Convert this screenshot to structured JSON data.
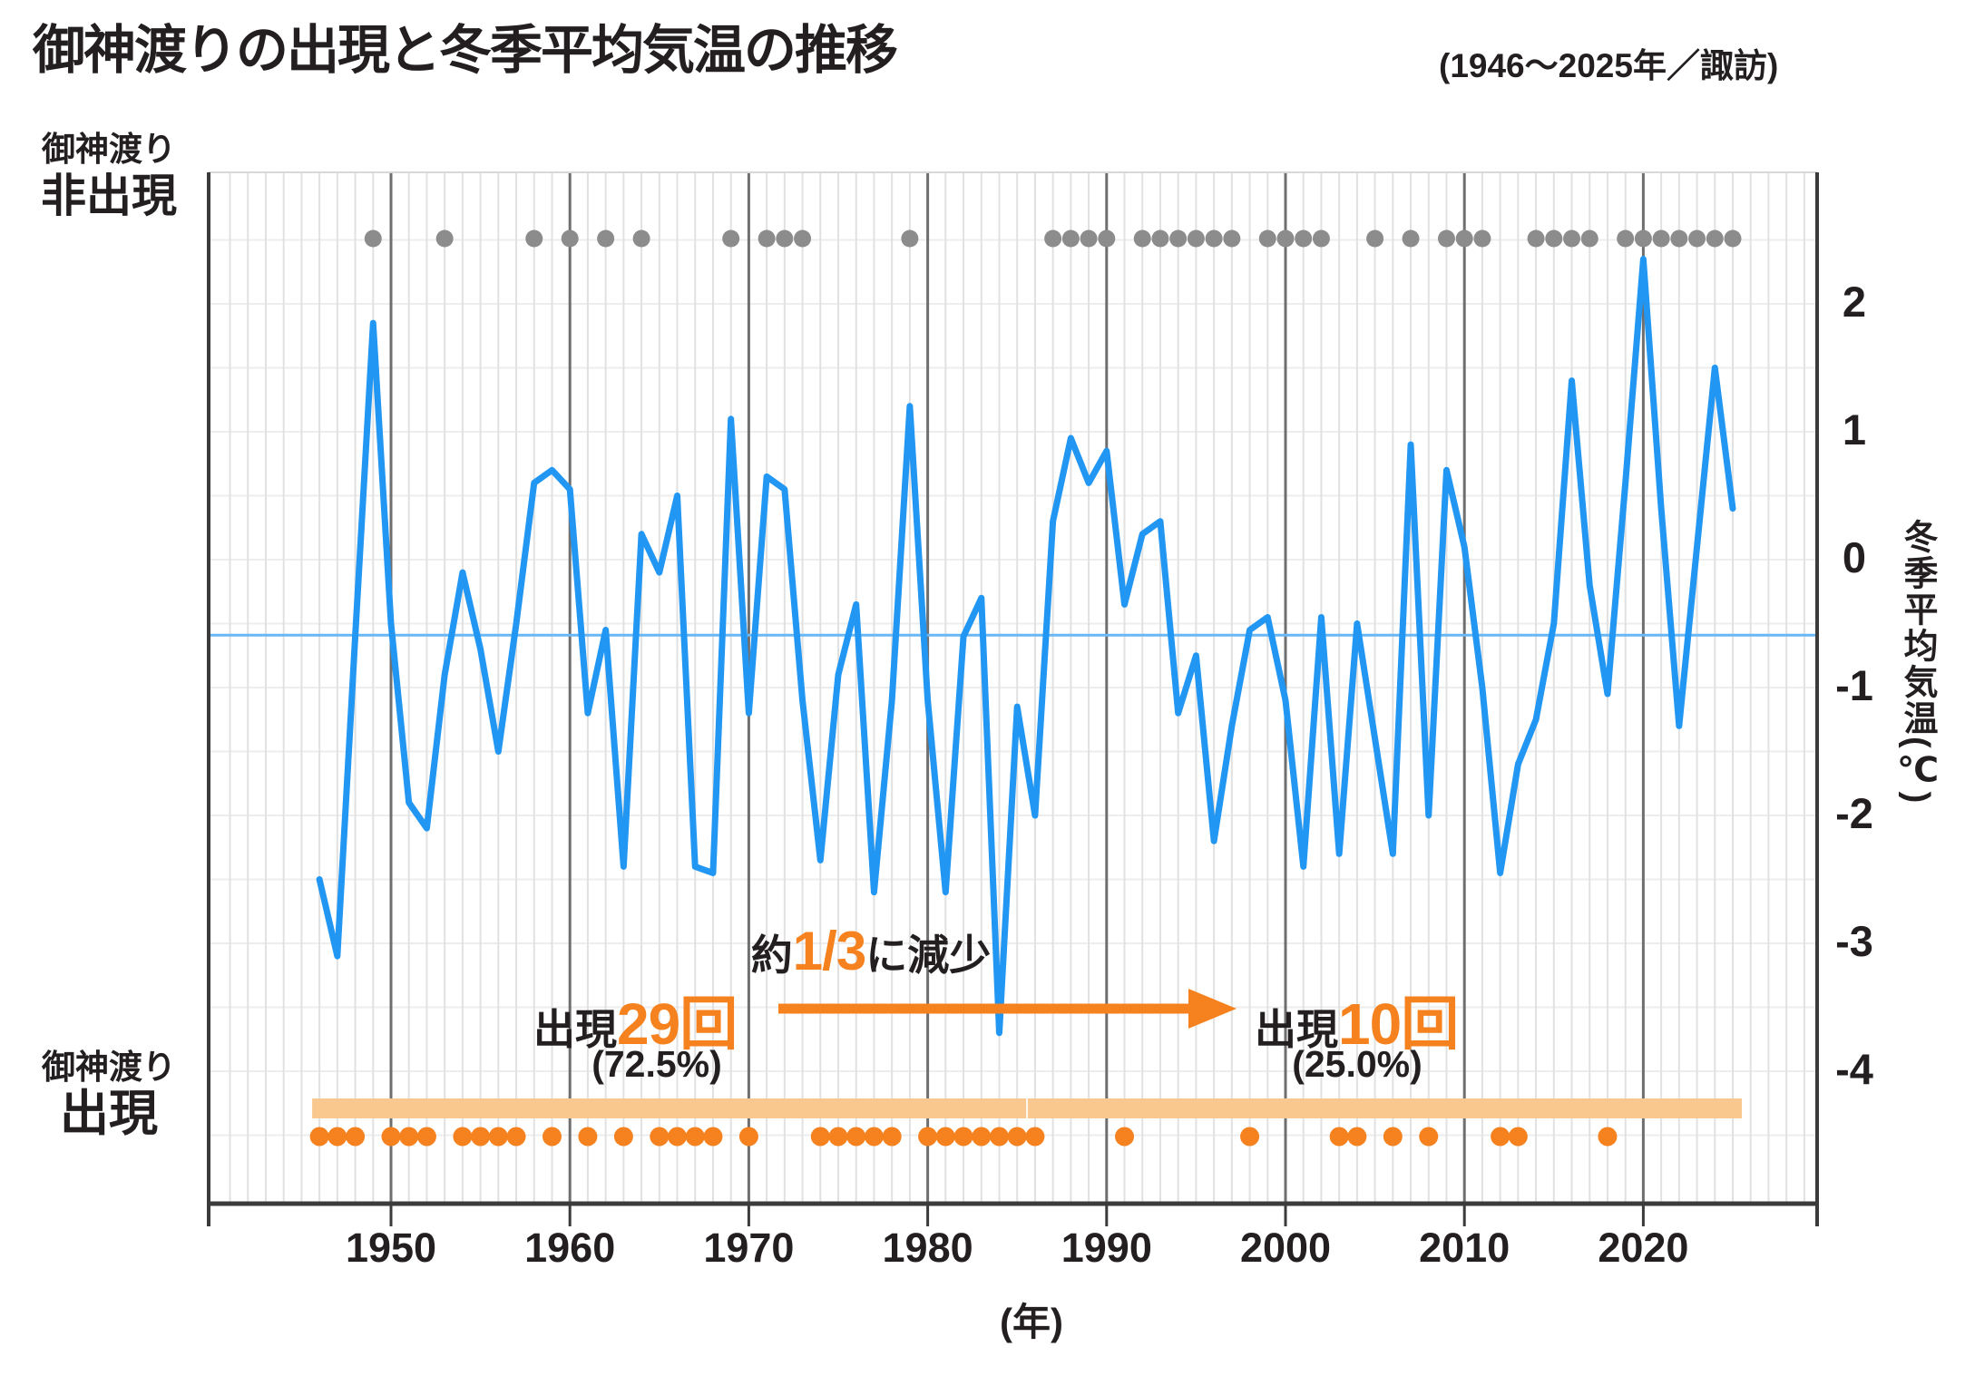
{
  "title": "御神渡りの出現と冬季平均気温の推移",
  "subtitle": "(1946〜2025年／諏訪)",
  "left_labels": {
    "non_appearance_line1": "御神渡り",
    "non_appearance_line2": "非出現",
    "appearance_line1": "御神渡り",
    "appearance_line2": "出現"
  },
  "y_axis": {
    "unit_label": "冬季平均気温(℃)",
    "ticks": [
      2,
      1,
      0,
      -1,
      -2,
      -3,
      -4
    ]
  },
  "x_axis": {
    "ticks": [
      1950,
      1960,
      1970,
      1980,
      1990,
      2000,
      2010,
      2020
    ],
    "unit_label": "(年)"
  },
  "annotations": {
    "left_prefix": "出現",
    "left_count": "29回",
    "left_pct": "(72.5%)",
    "right_prefix": "出現",
    "right_count": "10回",
    "right_pct": "(25.0%)",
    "reduce_pre": "約",
    "reduce_frac": "1/3",
    "reduce_post": "に減少"
  },
  "colors": {
    "temperature_line": "#2196f3",
    "baseline": "#6ab7f5",
    "orange": "#f5821f",
    "orange_bar": "#f8c88e",
    "gray_dot": "#8c8c8c",
    "decade_grid": "#6f6f6f",
    "year_grid": "#e1e1e1",
    "h_grid": "#ededed",
    "border": "#3b3b3b",
    "top_border": "#d8d8d8",
    "text": "#231f20"
  },
  "chart_data": {
    "type": "line",
    "title": "御神渡りの出現と冬季平均気温の推移(1946〜2025年／諏訪)",
    "xlabel": "年",
    "ylabel": "冬季平均気温(℃)",
    "xlim": [
      1940,
      2030
    ],
    "ylim": [
      -5,
      3
    ],
    "grid": true,
    "x": [
      1946,
      1947,
      1948,
      1949,
      1950,
      1951,
      1952,
      1953,
      1954,
      1955,
      1956,
      1957,
      1958,
      1959,
      1960,
      1961,
      1962,
      1963,
      1964,
      1965,
      1966,
      1967,
      1968,
      1969,
      1970,
      1971,
      1972,
      1973,
      1974,
      1975,
      1976,
      1977,
      1978,
      1979,
      1980,
      1981,
      1982,
      1983,
      1984,
      1985,
      1986,
      1987,
      1988,
      1989,
      1990,
      1991,
      1992,
      1993,
      1994,
      1995,
      1996,
      1997,
      1998,
      1999,
      2000,
      2001,
      2002,
      2003,
      2004,
      2005,
      2006,
      2007,
      2008,
      2009,
      2010,
      2011,
      2012,
      2013,
      2014,
      2015,
      2016,
      2017,
      2018,
      2019,
      2020,
      2021,
      2022,
      2023,
      2024,
      2025
    ],
    "series": [
      {
        "name": "冬季平均気温",
        "values": [
          -2.5,
          -3.1,
          -0.6,
          1.85,
          -0.5,
          -1.9,
          -2.1,
          -0.9,
          -0.1,
          -0.7,
          -1.5,
          -0.5,
          0.6,
          0.7,
          0.55,
          -1.2,
          -0.55,
          -2.4,
          0.2,
          -0.1,
          0.5,
          -2.4,
          -2.45,
          1.1,
          -1.2,
          0.65,
          0.55,
          -1.1,
          -2.35,
          -0.9,
          -0.35,
          -2.6,
          -1.1,
          1.2,
          -1.1,
          -2.6,
          -0.6,
          -0.3,
          -3.7,
          -1.15,
          -2.0,
          0.3,
          0.95,
          0.6,
          0.85,
          -0.35,
          0.2,
          0.3,
          -1.2,
          -0.75,
          -2.2,
          -1.3,
          -0.55,
          -0.45,
          -1.1,
          -2.4,
          -0.45,
          -2.3,
          -0.5,
          -1.4,
          -2.3,
          0.9,
          -2.0,
          0.7,
          0.1,
          -1.0,
          -2.45,
          -1.6,
          -1.25,
          -0.5,
          1.4,
          -0.2,
          -1.05,
          0.6,
          2.35,
          0.4,
          -1.3,
          0.1,
          1.5,
          0.4
        ]
      }
    ],
    "baseline_value": -0.59,
    "appearance_years": [
      1946,
      1947,
      1948,
      1950,
      1951,
      1952,
      1954,
      1955,
      1956,
      1957,
      1959,
      1961,
      1963,
      1965,
      1966,
      1967,
      1968,
      1970,
      1974,
      1975,
      1976,
      1977,
      1978,
      1980,
      1981,
      1982,
      1983,
      1984,
      1985,
      1986,
      1991,
      1998,
      2003,
      2004,
      2006,
      2008,
      2012,
      2013,
      2018
    ],
    "non_appearance_years": [
      1949,
      1953,
      1958,
      1960,
      1962,
      1964,
      1969,
      1971,
      1972,
      1973,
      1979,
      1987,
      1988,
      1989,
      1990,
      1992,
      1993,
      1994,
      1995,
      1996,
      1997,
      1999,
      2000,
      2001,
      2002,
      2005,
      2007,
      2009,
      2010,
      2011,
      2014,
      2015,
      2016,
      2017,
      2019,
      2020,
      2021,
      2022,
      2023,
      2024,
      2025
    ],
    "appearance_periods": [
      {
        "start": 1946,
        "end": 1985,
        "count_label": "出現29回",
        "pct_label": "(72.5%)"
      },
      {
        "start": 1986,
        "end": 2025,
        "count_label": "出現10回",
        "pct_label": "(25.0%)"
      }
    ]
  }
}
